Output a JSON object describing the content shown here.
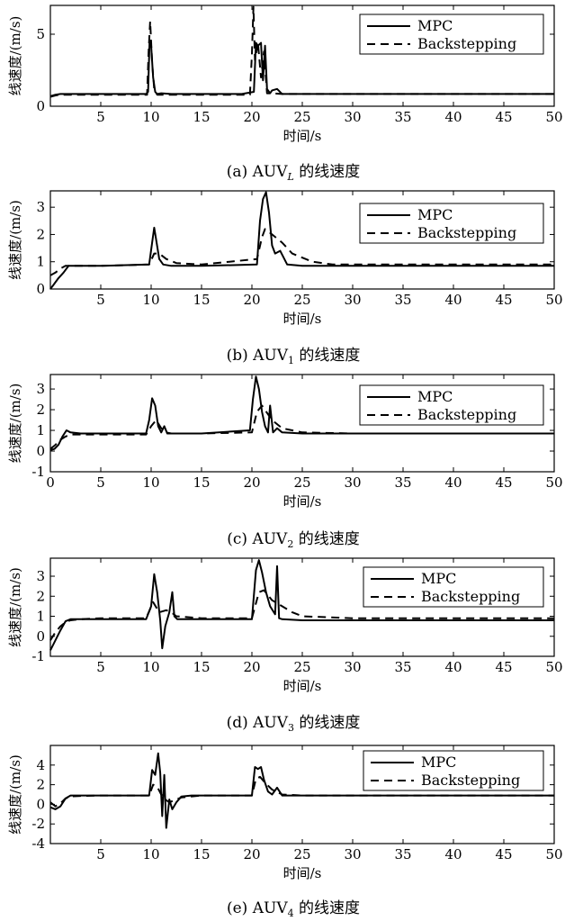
{
  "chart_data": [
    {
      "type": "line",
      "caption": "(a) AUV",
      "caption_sub": "L",
      "caption_suffix": " 的线速度",
      "xlabel": "时间/s",
      "ylabel": "线速度/(m/s)",
      "xlim": [
        0,
        50
      ],
      "ylim": [
        0,
        7
      ],
      "xticks": [
        5,
        10,
        15,
        20,
        25,
        30,
        35,
        40,
        45,
        50
      ],
      "yticks": [
        0,
        5
      ],
      "legend": [
        "MPC",
        "Backstepping"
      ],
      "series": [
        {
          "name": "MPC",
          "style": "solid",
          "x": [
            0,
            0.5,
            1,
            2,
            5,
            9.5,
            9.7,
            9.85,
            10,
            10.2,
            10.4,
            10.6,
            11,
            12,
            15,
            19,
            20.2,
            20.4,
            20.6,
            20.9,
            21.1,
            21.3,
            21.5,
            21.8,
            22,
            22.5,
            23,
            25,
            30,
            40,
            50
          ],
          "y": [
            0.7,
            0.8,
            0.85,
            0.85,
            0.85,
            0.85,
            1.0,
            4.6,
            4.2,
            2.0,
            1.0,
            0.85,
            0.9,
            0.85,
            0.85,
            0.85,
            1.0,
            4.4,
            4.2,
            4.4,
            1.8,
            4.2,
            1.2,
            0.9,
            1.1,
            1.2,
            0.85,
            0.85,
            0.85,
            0.85,
            0.85
          ]
        },
        {
          "name": "Backstepping",
          "style": "dashed",
          "x": [
            0,
            0.5,
            1,
            2,
            5,
            9.6,
            9.75,
            9.9,
            10.1,
            10.3,
            10.6,
            11,
            12,
            15,
            19.8,
            20,
            20.15,
            20.3,
            20.6,
            20.9,
            21.2,
            21.5,
            22,
            23,
            25,
            30,
            40,
            50
          ],
          "y": [
            0.65,
            0.75,
            0.8,
            0.8,
            0.8,
            0.8,
            3.8,
            5.9,
            3.0,
            1.2,
            0.8,
            0.8,
            0.8,
            0.8,
            0.8,
            3.6,
            6.9,
            3.2,
            4.4,
            2.0,
            3.8,
            0.9,
            0.9,
            0.85,
            0.85,
            0.85,
            0.85,
            0.85
          ]
        }
      ]
    },
    {
      "type": "line",
      "caption": "(b) AUV",
      "caption_sub": "1",
      "caption_suffix": " 的线速度",
      "xlabel": "时间/s",
      "ylabel": "线速度/(m/s)",
      "xlim": [
        0,
        50
      ],
      "ylim": [
        0,
        3.6
      ],
      "xticks": [
        5,
        10,
        15,
        20,
        25,
        30,
        35,
        40,
        45,
        50
      ],
      "yticks": [
        0,
        1,
        2,
        3
      ],
      "legend": [
        "MPC",
        "Backstepping"
      ],
      "series": [
        {
          "name": "MPC",
          "style": "solid",
          "x": [
            0,
            0.3,
            0.8,
            1.3,
            1.8,
            3,
            5,
            9.8,
            10.1,
            10.3,
            10.5,
            10.8,
            11.2,
            12,
            15,
            20.5,
            20.8,
            21.1,
            21.4,
            21.7,
            22,
            22.3,
            22.8,
            23.5,
            25,
            30,
            40,
            50
          ],
          "y": [
            0.0,
            0.15,
            0.4,
            0.6,
            0.85,
            0.85,
            0.85,
            0.9,
            1.7,
            2.25,
            1.8,
            1.1,
            0.9,
            0.85,
            0.85,
            0.9,
            2.5,
            3.3,
            3.55,
            2.8,
            1.6,
            1.3,
            1.4,
            0.9,
            0.85,
            0.85,
            0.85,
            0.85
          ]
        },
        {
          "name": "Backstepping",
          "style": "dashed",
          "x": [
            0,
            0.5,
            1,
            1.5,
            3,
            5,
            9.8,
            10.3,
            10.8,
            11.5,
            12.5,
            15,
            20.5,
            21,
            21.3,
            22,
            23,
            24,
            26,
            28,
            30,
            40,
            50
          ],
          "y": [
            0.5,
            0.6,
            0.75,
            0.85,
            0.85,
            0.85,
            0.9,
            1.3,
            1.3,
            1.1,
            0.95,
            0.9,
            1.1,
            1.9,
            2.2,
            2.0,
            1.7,
            1.3,
            1.0,
            0.9,
            0.9,
            0.9,
            0.9
          ]
        }
      ]
    },
    {
      "type": "line",
      "caption": "(c) AUV",
      "caption_sub": "2",
      "caption_suffix": " 的线速度",
      "xlabel": "时间/s",
      "ylabel": "线速度/(m/s)",
      "xlim": [
        0,
        50
      ],
      "ylim": [
        -1,
        3.7
      ],
      "xticks": [
        0,
        5,
        10,
        15,
        20,
        25,
        30,
        35,
        40,
        45,
        50
      ],
      "yticks": [
        -1,
        0,
        1,
        2,
        3
      ],
      "legend": [
        "MPC",
        "Backstepping"
      ],
      "series": [
        {
          "name": "MPC",
          "style": "solid",
          "x": [
            0,
            0.4,
            0.8,
            1.2,
            1.6,
            2,
            3,
            5,
            9.5,
            9.8,
            10.1,
            10.4,
            10.7,
            11,
            11.3,
            11.6,
            12,
            15,
            19.8,
            20.1,
            20.4,
            20.7,
            21,
            21.3,
            21.6,
            21.8,
            22.1,
            22.5,
            23,
            25,
            30,
            40,
            50
          ],
          "y": [
            0.05,
            0.1,
            0.3,
            0.7,
            1.0,
            0.9,
            0.85,
            0.85,
            0.85,
            1.5,
            2.55,
            2.2,
            1.2,
            0.9,
            1.2,
            0.85,
            0.85,
            0.85,
            1.0,
            2.5,
            3.6,
            3.0,
            1.9,
            1.2,
            0.9,
            2.2,
            0.9,
            1.1,
            0.9,
            0.85,
            0.85,
            0.85,
            0.85
          ]
        },
        {
          "name": "Backstepping",
          "style": "dashed",
          "x": [
            0,
            0.5,
            1,
            1.5,
            2,
            3,
            5,
            9.5,
            10,
            10.5,
            11,
            11.5,
            12,
            15,
            20,
            20.5,
            21,
            22,
            23,
            25,
            30,
            40,
            50
          ],
          "y": [
            0.1,
            0.3,
            0.55,
            0.7,
            0.8,
            0.8,
            0.8,
            0.8,
            1.2,
            1.5,
            1.1,
            0.9,
            0.85,
            0.85,
            0.9,
            1.9,
            2.2,
            1.5,
            1.1,
            0.9,
            0.85,
            0.85,
            0.85
          ]
        }
      ]
    },
    {
      "type": "line",
      "caption": "(d) AUV",
      "caption_sub": "3",
      "caption_suffix": " 的线速度",
      "xlabel": "时间/s",
      "ylabel": "线速度/(m/s)",
      "xlim": [
        0,
        50
      ],
      "ylim": [
        -1,
        3.9
      ],
      "xticks": [
        5,
        10,
        15,
        20,
        25,
        30,
        35,
        40,
        45,
        50
      ],
      "yticks": [
        -1,
        0,
        1,
        2,
        3
      ],
      "legend": [
        "MPC",
        "Backstepping"
      ],
      "series": [
        {
          "name": "MPC",
          "style": "solid",
          "x": [
            0,
            0.5,
            1,
            1.5,
            2,
            3,
            5,
            9.5,
            10,
            10.3,
            10.6,
            10.9,
            11.1,
            11.4,
            11.8,
            12.1,
            12.3,
            12.6,
            13,
            15,
            20,
            20.4,
            20.7,
            21,
            21.4,
            21.8,
            22.3,
            22.5,
            22.7,
            23,
            25,
            30,
            40,
            50
          ],
          "y": [
            -0.7,
            -0.2,
            0.3,
            0.75,
            0.85,
            0.85,
            0.85,
            0.85,
            1.5,
            3.1,
            2.2,
            0.8,
            -0.6,
            0.5,
            1.2,
            2.2,
            1.0,
            0.85,
            0.85,
            0.85,
            0.85,
            3.3,
            3.8,
            3.2,
            2.2,
            1.5,
            1.1,
            3.5,
            0.9,
            0.85,
            0.8,
            0.8,
            0.8,
            0.8
          ]
        },
        {
          "name": "Backstepping",
          "style": "dashed",
          "x": [
            0,
            0.5,
            1,
            1.5,
            2,
            3,
            5,
            9.5,
            10.2,
            10.8,
            11.5,
            12,
            12.5,
            15,
            20,
            20.7,
            21.2,
            22,
            23,
            24,
            25,
            30,
            40,
            50
          ],
          "y": [
            -0.2,
            0.2,
            0.5,
            0.7,
            0.8,
            0.85,
            0.9,
            0.9,
            1.7,
            1.2,
            1.3,
            1.2,
            1.0,
            0.9,
            0.9,
            2.2,
            2.3,
            1.8,
            1.5,
            1.2,
            1.0,
            0.9,
            0.9,
            0.9
          ]
        }
      ]
    },
    {
      "type": "line",
      "caption": "(e) AUV",
      "caption_sub": "4",
      "caption_suffix": " 的线速度",
      "xlabel": "时间/s",
      "ylabel": "线速度/(m/s)",
      "xlim": [
        0,
        50
      ],
      "ylim": [
        -4,
        6
      ],
      "xticks": [
        5,
        10,
        15,
        20,
        25,
        30,
        35,
        40,
        45,
        50
      ],
      "yticks": [
        -4,
        -2,
        0,
        2,
        4
      ],
      "legend": [
        "MPC",
        "Backstepping"
      ],
      "series": [
        {
          "name": "MPC",
          "style": "solid",
          "x": [
            0,
            0.5,
            1,
            1.5,
            2,
            3,
            5,
            9.8,
            10.1,
            10.4,
            10.7,
            10.9,
            11.1,
            11.3,
            11.5,
            11.8,
            12.1,
            12.5,
            13,
            14,
            15,
            20,
            20.3,
            20.6,
            20.9,
            21.2,
            21.6,
            22,
            22.5,
            23,
            25,
            30,
            40,
            50
          ],
          "y": [
            -0.3,
            -0.5,
            -0.2,
            0.6,
            0.9,
            0.9,
            0.9,
            0.9,
            3.5,
            3.0,
            5.2,
            3.2,
            -1.2,
            3.0,
            -2.4,
            0.5,
            -0.5,
            0.2,
            0.8,
            0.9,
            0.9,
            0.9,
            3.8,
            3.6,
            3.8,
            2.5,
            1.3,
            1.0,
            1.7,
            0.9,
            0.9,
            0.9,
            0.9,
            0.9
          ]
        },
        {
          "name": "Backstepping",
          "style": "dashed",
          "x": [
            0,
            0.5,
            1,
            1.5,
            2,
            3,
            5,
            9.8,
            10.2,
            10.6,
            11,
            11.4,
            11.8,
            12.5,
            13,
            15,
            20,
            20.4,
            20.8,
            21.3,
            22,
            23,
            25,
            30,
            40,
            50
          ],
          "y": [
            0.2,
            -0.2,
            0.1,
            0.6,
            0.8,
            0.85,
            0.9,
            0.9,
            2.0,
            1.8,
            1.0,
            0.5,
            0.2,
            0.5,
            0.7,
            0.9,
            0.9,
            2.6,
            2.8,
            2.2,
            1.5,
            1.0,
            0.9,
            0.9,
            0.9,
            0.9
          ]
        }
      ]
    }
  ]
}
